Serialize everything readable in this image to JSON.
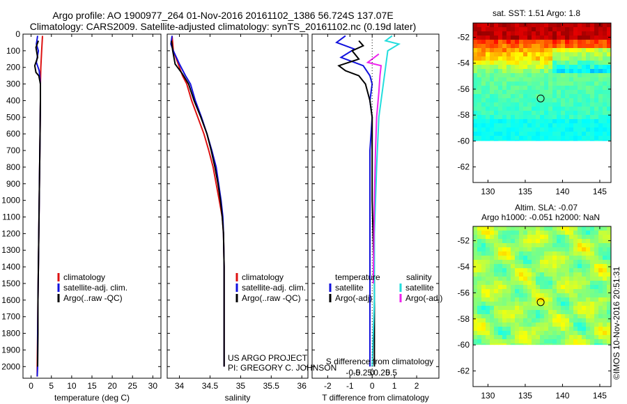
{
  "title_line1": "Argo profile: AO 1900977_264 01-Nov-2016 20161102_1386 56.724S 137.07E",
  "title_line2": "Climatology: CARS2009. Satellite-adjusted climatology: synTS_20161102.nc (0.19d later)",
  "project_line1": "US ARGO PROJECT",
  "project_line2": "PI: GREGORY C. JOHNSON",
  "credit": "©IMOS 10-Nov-2016 20:51:31",
  "colors": {
    "climatology": "#dd1111",
    "satellite": "#1111dd",
    "argo": "#000000",
    "salinity_satellite": "#22dddd",
    "salinity_argo": "#ee22ee"
  },
  "chart_data": [
    {
      "type": "line",
      "panel": "temperature",
      "xlabel": "temperature (deg C)",
      "ylabel": "",
      "xlim": [
        -2,
        32
      ],
      "ylim": [
        2070,
        0
      ],
      "xticks": [
        0,
        5,
        10,
        15,
        20,
        25,
        30
      ],
      "yticks": [
        0,
        100,
        200,
        300,
        400,
        500,
        600,
        700,
        800,
        900,
        1000,
        1100,
        1200,
        1300,
        1400,
        1500,
        1600,
        1700,
        1800,
        1900,
        2000
      ],
      "legend": [
        "climatology",
        "satellite-adj. clim.",
        "Argo(..raw -QC)"
      ],
      "series": [
        {
          "name": "climatology",
          "color": "#dd1111",
          "points": [
            [
              2.8,
              10
            ],
            [
              2.6,
              100
            ],
            [
              2.4,
              200
            ],
            [
              2.3,
              300
            ],
            [
              2.3,
              400
            ],
            [
              2.2,
              600
            ],
            [
              2.1,
              800
            ],
            [
              2.0,
              1000
            ],
            [
              1.9,
              1200
            ],
            [
              1.8,
              1400
            ],
            [
              1.7,
              1600
            ],
            [
              1.6,
              1800
            ],
            [
              1.5,
              2000
            ],
            [
              1.5,
              2060
            ]
          ]
        },
        {
          "name": "satellite-adj. clim.",
          "color": "#1111dd",
          "points": [
            [
              1.6,
              10
            ],
            [
              1.3,
              60
            ],
            [
              1.8,
              100
            ],
            [
              1.3,
              170
            ],
            [
              2.0,
              220
            ],
            [
              2.3,
              300
            ],
            [
              2.3,
              400
            ],
            [
              2.2,
              600
            ],
            [
              2.1,
              800
            ],
            [
              2.0,
              1000
            ],
            [
              1.9,
              1200
            ],
            [
              1.8,
              1400
            ],
            [
              1.7,
              1600
            ],
            [
              1.6,
              1800
            ],
            [
              1.6,
              2000
            ],
            [
              1.5,
              2060
            ]
          ]
        },
        {
          "name": "Argo(..raw -QC)",
          "color": "#000000",
          "points": [
            [
              1.8,
              40
            ],
            [
              1.2,
              80
            ],
            [
              1.6,
              140
            ],
            [
              0.9,
              190
            ],
            [
              1.2,
              230
            ],
            [
              1.9,
              250
            ],
            [
              2.3,
              300
            ],
            [
              2.3,
              400
            ],
            [
              2.2,
              600
            ],
            [
              2.1,
              800
            ],
            [
              2.0,
              1000
            ],
            [
              1.9,
              1200
            ],
            [
              1.8,
              1400
            ],
            [
              1.7,
              1600
            ],
            [
              1.7,
              1800
            ],
            [
              1.6,
              2000
            ]
          ]
        }
      ]
    },
    {
      "type": "line",
      "panel": "salinity",
      "xlabel": "salinity",
      "ylabel": "",
      "xlim": [
        33.8,
        36.1
      ],
      "ylim": [
        2070,
        0
      ],
      "xticks": [
        34,
        34.5,
        35,
        35.5,
        36
      ],
      "xticklabels": [
        "34",
        "34.5",
        "35",
        "35.5",
        "36"
      ],
      "legend": [
        "climatology",
        "satellite-adj. clim.",
        "Argo(..raw -QC)"
      ],
      "series": [
        {
          "name": "climatology",
          "color": "#dd1111",
          "points": [
            [
              33.88,
              10
            ],
            [
              33.9,
              100
            ],
            [
              33.95,
              150
            ],
            [
              34.0,
              200
            ],
            [
              34.05,
              250
            ],
            [
              34.12,
              300
            ],
            [
              34.2,
              400
            ],
            [
              34.3,
              500
            ],
            [
              34.4,
              600
            ],
            [
              34.48,
              700
            ],
            [
              34.55,
              800
            ],
            [
              34.6,
              900
            ],
            [
              34.65,
              1000
            ],
            [
              34.7,
              1100
            ],
            [
              34.72,
              1200
            ],
            [
              34.73,
              1400
            ],
            [
              34.73,
              1600
            ],
            [
              34.73,
              1800
            ],
            [
              34.73,
              2000
            ]
          ]
        },
        {
          "name": "satellite-adj. clim.",
          "color": "#1111dd",
          "points": [
            [
              33.88,
              10
            ],
            [
              33.86,
              60
            ],
            [
              33.9,
              100
            ],
            [
              34.0,
              180
            ],
            [
              34.1,
              250
            ],
            [
              34.18,
              300
            ],
            [
              34.26,
              400
            ],
            [
              34.36,
              500
            ],
            [
              34.45,
              600
            ],
            [
              34.53,
              700
            ],
            [
              34.6,
              800
            ],
            [
              34.64,
              900
            ],
            [
              34.68,
              1000
            ],
            [
              34.71,
              1100
            ],
            [
              34.72,
              1200
            ],
            [
              34.73,
              1400
            ],
            [
              34.73,
              1600
            ],
            [
              34.73,
              1800
            ],
            [
              34.73,
              2000
            ]
          ]
        },
        {
          "name": "Argo(..raw -QC)",
          "color": "#000000",
          "points": [
            [
              33.87,
              40
            ],
            [
              33.89,
              100
            ],
            [
              33.93,
              180
            ],
            [
              34.05,
              240
            ],
            [
              34.15,
              300
            ],
            [
              34.24,
              400
            ],
            [
              34.35,
              500
            ],
            [
              34.45,
              600
            ],
            [
              34.52,
              700
            ],
            [
              34.58,
              800
            ],
            [
              34.63,
              900
            ],
            [
              34.67,
              1000
            ],
            [
              34.7,
              1100
            ],
            [
              34.72,
              1200
            ],
            [
              34.73,
              1400
            ],
            [
              34.73,
              1600
            ],
            [
              34.73,
              1800
            ],
            [
              34.73,
              2000
            ]
          ]
        }
      ]
    },
    {
      "type": "line",
      "panel": "difference",
      "xlabel": "T difference from climatology",
      "xlabel_top": "S difference from climatology",
      "xlim": [
        -2.7,
        3
      ],
      "ylim": [
        2070,
        0
      ],
      "xticks": [
        -2,
        -1,
        0,
        1,
        2
      ],
      "sticks": [
        -0.5,
        -0.25,
        0,
        0.25,
        0.5
      ],
      "sticklabels": [
        "-0.5",
        "-0.25",
        "0",
        "0.25",
        "0.5"
      ],
      "legend_temperature_title": "temperature",
      "legend_salinity_title": "salinity",
      "legend": [
        "satellite",
        "Argo(-adj)",
        "satellite",
        "Argo(-adj)"
      ],
      "series": [
        {
          "name": "satellite",
          "color": "#1111dd",
          "points": [
            [
              -1.2,
              10
            ],
            [
              -1.6,
              50
            ],
            [
              -0.8,
              90
            ],
            [
              -1.4,
              140
            ],
            [
              -0.4,
              190
            ],
            [
              -0.1,
              250
            ],
            [
              0.0,
              300
            ],
            [
              -0.1,
              400
            ],
            [
              0.0,
              500
            ],
            [
              -0.1,
              700
            ],
            [
              -0.1,
              1000
            ],
            [
              -0.1,
              1500
            ],
            [
              -0.1,
              2000
            ]
          ]
        },
        {
          "name": "Argo(-adj)",
          "color": "#000000",
          "points": [
            [
              -0.6,
              40
            ],
            [
              -0.4,
              70
            ],
            [
              -0.9,
              100
            ],
            [
              -0.6,
              150
            ],
            [
              -1.5,
              190
            ],
            [
              -1.2,
              220
            ],
            [
              -0.6,
              250
            ],
            [
              -0.3,
              300
            ],
            [
              -0.1,
              400
            ],
            [
              0.0,
              500
            ],
            [
              0.0,
              800
            ],
            [
              0.0,
              1000
            ],
            [
              0.1,
              1500
            ],
            [
              0.1,
              2000
            ]
          ]
        },
        {
          "name": "salinity satellite",
          "color": "#22dddd",
          "points": [
            [
              0.9,
              10
            ],
            [
              0.6,
              40
            ],
            [
              1.2,
              60
            ],
            [
              0.7,
              100
            ],
            [
              0.6,
              200
            ],
            [
              0.5,
              300
            ],
            [
              0.3,
              500
            ],
            [
              0.2,
              800
            ],
            [
              0.1,
              1200
            ],
            [
              0.1,
              1600
            ],
            [
              0.0,
              2000
            ]
          ]
        },
        {
          "name": "salinity Argo(-adj)",
          "color": "#ee22ee",
          "points": [
            [
              0.3,
              120
            ],
            [
              -0.2,
              170
            ],
            [
              0.4,
              190
            ],
            [
              0.35,
              250
            ],
            [
              0.3,
              350
            ],
            [
              0.2,
              500
            ],
            [
              0.15,
              700
            ],
            [
              0.1,
              1000
            ],
            [
              0.05,
              1500
            ]
          ]
        }
      ]
    },
    {
      "type": "heatmap",
      "panel": "sst",
      "title": "sat. SST: 1.51 Argo: 1.8",
      "xlim": [
        128,
        146.5
      ],
      "ylim": [
        -63.2,
        -50.9
      ],
      "xticks": [
        130,
        135,
        140,
        145
      ],
      "yticks": [
        -52,
        -54,
        -56,
        -58,
        -60,
        -62
      ],
      "data_lat_min": -60,
      "marker": [
        137.07,
        -56.72
      ]
    },
    {
      "type": "heatmap",
      "panel": "sla",
      "title_line1": "Altim. SLA: -0.07",
      "title_line2": "Argo h1000: -0.051 h2000: NaN",
      "xlim": [
        128,
        146.5
      ],
      "ylim": [
        -63.2,
        -50.9
      ],
      "xticks": [
        130,
        135,
        140,
        145
      ],
      "yticks": [
        -52,
        -54,
        -56,
        -58,
        -60,
        -62
      ],
      "data_lat_min": -60,
      "marker": [
        137.07,
        -56.72
      ]
    }
  ]
}
